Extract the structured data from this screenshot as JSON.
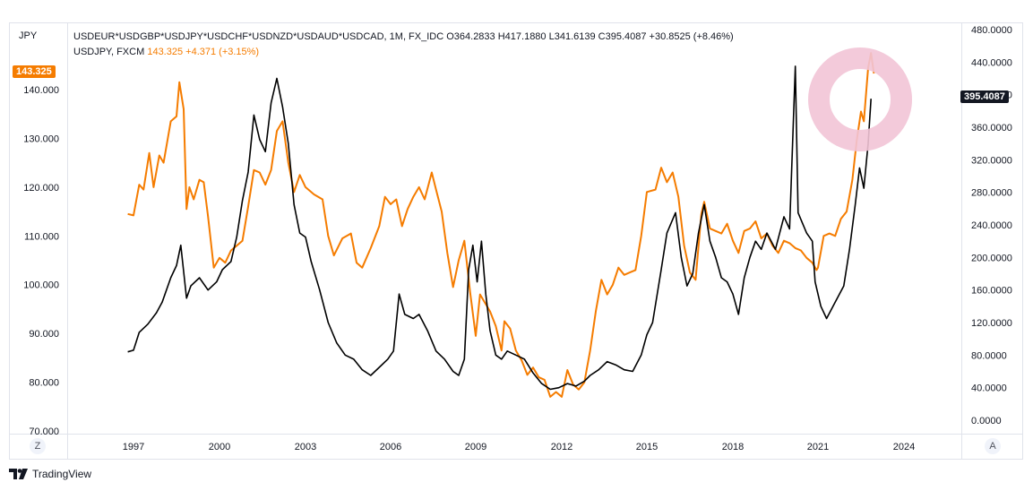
{
  "header": {
    "left_unit": "JPY",
    "legend_main": "USDEUR*USDGBP*USDJPY*USDCHF*USDNZD*USDAUD*USDCAD, 1M, FX_IDC  O364.2833  H417.1880  L341.6139  C395.4087  +30.8525 (+8.46%)",
    "legend_second_name": "USDJPY, FXCM",
    "legend_second_value": "143.325  +4.371 (+3.15%)"
  },
  "tags": {
    "left_price": "143.325",
    "right_price": "395.4087"
  },
  "buttons": {
    "z_label": "Z",
    "a_label": "A"
  },
  "branding": {
    "logo_text": "TradingView"
  },
  "colors": {
    "usdjpy": "#f57c00",
    "basket": "#000000",
    "highlight_ring": "#f2c4d6"
  },
  "chart_data": {
    "type": "line",
    "x_tick_labels": [
      "1997",
      "2000",
      "2003",
      "2006",
      "2009",
      "2012",
      "2015",
      "2018",
      "2021",
      "2024"
    ],
    "left_axis": {
      "label": "JPY",
      "ticks": [
        "140.000",
        "130.000",
        "120.000",
        "110.000",
        "100.000",
        "90.000",
        "80.000",
        "70.000"
      ],
      "ylim": [
        70,
        143.5
      ]
    },
    "right_axis": {
      "ticks": [
        "480.0000",
        "440.0000",
        "400.0000",
        "360.0000",
        "320.0000",
        "280.0000",
        "240.0000",
        "200.0000",
        "160.0000",
        "120.0000",
        "80.0000",
        "40.0000",
        "0.0000"
      ],
      "ylim": [
        0,
        480
      ]
    },
    "series": [
      {
        "name": "USDJPY, FXCM",
        "axis": "left",
        "color": "#f57c00",
        "points": [
          [
            1996.8,
            114.5
          ],
          [
            1997.0,
            114.2
          ],
          [
            1997.2,
            120.5
          ],
          [
            1997.35,
            119.5
          ],
          [
            1997.55,
            127.0
          ],
          [
            1997.7,
            120.0
          ],
          [
            1997.9,
            126.5
          ],
          [
            1998.05,
            125.0
          ],
          [
            1998.3,
            133.5
          ],
          [
            1998.5,
            134.5
          ],
          [
            1998.6,
            141.5
          ],
          [
            1998.75,
            136.0
          ],
          [
            1998.85,
            115.5
          ],
          [
            1998.95,
            120.0
          ],
          [
            1999.1,
            117.5
          ],
          [
            1999.3,
            121.5
          ],
          [
            1999.45,
            121.0
          ],
          [
            1999.6,
            114.0
          ],
          [
            1999.8,
            103.5
          ],
          [
            2000.0,
            105.5
          ],
          [
            2000.2,
            104.5
          ],
          [
            2000.4,
            107.0
          ],
          [
            2000.6,
            108.0
          ],
          [
            2000.8,
            109.0
          ],
          [
            2001.0,
            116.0
          ],
          [
            2001.2,
            123.5
          ],
          [
            2001.4,
            123.0
          ],
          [
            2001.6,
            120.5
          ],
          [
            2001.8,
            123.5
          ],
          [
            2002.0,
            131.5
          ],
          [
            2002.2,
            133.5
          ],
          [
            2002.4,
            125.0
          ],
          [
            2002.6,
            119.0
          ],
          [
            2002.8,
            122.5
          ],
          [
            2003.0,
            120.0
          ],
          [
            2003.3,
            118.5
          ],
          [
            2003.6,
            117.5
          ],
          [
            2003.8,
            110.0
          ],
          [
            2004.0,
            106.0
          ],
          [
            2004.3,
            109.5
          ],
          [
            2004.6,
            110.5
          ],
          [
            2004.8,
            104.5
          ],
          [
            2005.0,
            103.5
          ],
          [
            2005.3,
            107.5
          ],
          [
            2005.6,
            112.0
          ],
          [
            2005.8,
            118.0
          ],
          [
            2006.0,
            116.5
          ],
          [
            2006.2,
            117.5
          ],
          [
            2006.4,
            112.0
          ],
          [
            2006.6,
            115.5
          ],
          [
            2006.8,
            118.0
          ],
          [
            2007.0,
            120.0
          ],
          [
            2007.2,
            117.5
          ],
          [
            2007.45,
            123.0
          ],
          [
            2007.6,
            119.5
          ],
          [
            2007.8,
            115.0
          ],
          [
            2008.0,
            106.5
          ],
          [
            2008.2,
            99.5
          ],
          [
            2008.4,
            105.0
          ],
          [
            2008.6,
            109.0
          ],
          [
            2008.8,
            98.5
          ],
          [
            2009.0,
            89.5
          ],
          [
            2009.15,
            98.0
          ],
          [
            2009.3,
            96.5
          ],
          [
            2009.5,
            94.5
          ],
          [
            2009.7,
            91.5
          ],
          [
            2009.9,
            86.5
          ],
          [
            2010.0,
            92.5
          ],
          [
            2010.2,
            91.0
          ],
          [
            2010.4,
            86.5
          ],
          [
            2010.6,
            84.5
          ],
          [
            2010.8,
            81.5
          ],
          [
            2011.0,
            83.0
          ],
          [
            2011.2,
            81.0
          ],
          [
            2011.4,
            80.5
          ],
          [
            2011.6,
            77.0
          ],
          [
            2011.8,
            78.0
          ],
          [
            2012.0,
            77.0
          ],
          [
            2012.2,
            82.5
          ],
          [
            2012.4,
            79.5
          ],
          [
            2012.6,
            78.5
          ],
          [
            2012.8,
            80.0
          ],
          [
            2013.0,
            86.5
          ],
          [
            2013.2,
            94.5
          ],
          [
            2013.4,
            101.0
          ],
          [
            2013.6,
            98.0
          ],
          [
            2013.8,
            100.0
          ],
          [
            2014.0,
            103.5
          ],
          [
            2014.2,
            102.0
          ],
          [
            2014.4,
            102.5
          ],
          [
            2014.6,
            103.0
          ],
          [
            2014.8,
            110.0
          ],
          [
            2015.0,
            119.0
          ],
          [
            2015.3,
            119.5
          ],
          [
            2015.5,
            124.0
          ],
          [
            2015.7,
            121.0
          ],
          [
            2015.9,
            123.0
          ],
          [
            2016.1,
            118.0
          ],
          [
            2016.3,
            108.0
          ],
          [
            2016.5,
            102.5
          ],
          [
            2016.7,
            101.0
          ],
          [
            2016.9,
            114.5
          ],
          [
            2017.0,
            117.0
          ],
          [
            2017.2,
            111.5
          ],
          [
            2017.4,
            111.0
          ],
          [
            2017.6,
            110.5
          ],
          [
            2017.8,
            112.5
          ],
          [
            2018.0,
            109.0
          ],
          [
            2018.2,
            106.5
          ],
          [
            2018.4,
            111.0
          ],
          [
            2018.6,
            111.5
          ],
          [
            2018.8,
            113.0
          ],
          [
            2019.0,
            109.5
          ],
          [
            2019.2,
            110.5
          ],
          [
            2019.4,
            108.0
          ],
          [
            2019.6,
            106.5
          ],
          [
            2019.8,
            109.0
          ],
          [
            2020.0,
            108.5
          ],
          [
            2020.2,
            107.5
          ],
          [
            2020.4,
            107.0
          ],
          [
            2020.6,
            105.5
          ],
          [
            2020.8,
            104.5
          ],
          [
            2020.95,
            103.0
          ],
          [
            2021.0,
            103.5
          ],
          [
            2021.2,
            110.0
          ],
          [
            2021.4,
            110.5
          ],
          [
            2021.6,
            110.0
          ],
          [
            2021.8,
            113.5
          ],
          [
            2022.0,
            115.0
          ],
          [
            2022.2,
            121.5
          ],
          [
            2022.35,
            129.5
          ],
          [
            2022.5,
            135.5
          ],
          [
            2022.6,
            133.5
          ],
          [
            2022.75,
            144.5
          ],
          [
            2022.85,
            147.5
          ],
          [
            2022.95,
            143.3
          ]
        ]
      },
      {
        "name": "USDEUR*USDGBP*USDJPY*USDCHF*USDNZD*USDAUD*USDCAD, FX_IDC",
        "axis": "right",
        "color": "#000000",
        "points": [
          [
            1996.8,
            84
          ],
          [
            1997.0,
            86
          ],
          [
            1997.2,
            108
          ],
          [
            1997.5,
            118
          ],
          [
            1997.8,
            132
          ],
          [
            1998.0,
            145
          ],
          [
            1998.3,
            175
          ],
          [
            1998.5,
            190
          ],
          [
            1998.65,
            215
          ],
          [
            1998.85,
            150
          ],
          [
            1999.0,
            165
          ],
          [
            1999.3,
            175
          ],
          [
            1999.6,
            160
          ],
          [
            1999.9,
            170
          ],
          [
            2000.1,
            185
          ],
          [
            2000.4,
            195
          ],
          [
            2000.6,
            225
          ],
          [
            2000.8,
            270
          ],
          [
            2001.0,
            305
          ],
          [
            2001.2,
            375
          ],
          [
            2001.4,
            345
          ],
          [
            2001.6,
            330
          ],
          [
            2001.8,
            390
          ],
          [
            2002.0,
            420
          ],
          [
            2002.2,
            385
          ],
          [
            2002.4,
            340
          ],
          [
            2002.6,
            265
          ],
          [
            2002.8,
            230
          ],
          [
            2003.0,
            225
          ],
          [
            2003.2,
            195
          ],
          [
            2003.5,
            160
          ],
          [
            2003.8,
            120
          ],
          [
            2004.1,
            95
          ],
          [
            2004.4,
            80
          ],
          [
            2004.7,
            75
          ],
          [
            2005.0,
            62
          ],
          [
            2005.3,
            55
          ],
          [
            2005.6,
            65
          ],
          [
            2005.9,
            75
          ],
          [
            2006.1,
            85
          ],
          [
            2006.3,
            155
          ],
          [
            2006.5,
            130
          ],
          [
            2006.8,
            125
          ],
          [
            2007.0,
            130
          ],
          [
            2007.3,
            110
          ],
          [
            2007.6,
            85
          ],
          [
            2007.9,
            75
          ],
          [
            2008.2,
            60
          ],
          [
            2008.4,
            55
          ],
          [
            2008.6,
            75
          ],
          [
            2008.75,
            185
          ],
          [
            2008.9,
            215
          ],
          [
            2009.05,
            170
          ],
          [
            2009.2,
            220
          ],
          [
            2009.35,
            155
          ],
          [
            2009.5,
            110
          ],
          [
            2009.7,
            80
          ],
          [
            2009.9,
            75
          ],
          [
            2010.1,
            85
          ],
          [
            2010.4,
            80
          ],
          [
            2010.7,
            75
          ],
          [
            2011.0,
            58
          ],
          [
            2011.3,
            45
          ],
          [
            2011.6,
            38
          ],
          [
            2011.9,
            40
          ],
          [
            2012.2,
            45
          ],
          [
            2012.5,
            42
          ],
          [
            2012.8,
            48
          ],
          [
            2013.0,
            55
          ],
          [
            2013.3,
            62
          ],
          [
            2013.6,
            72
          ],
          [
            2013.9,
            68
          ],
          [
            2014.2,
            62
          ],
          [
            2014.5,
            60
          ],
          [
            2014.8,
            80
          ],
          [
            2015.0,
            105
          ],
          [
            2015.2,
            120
          ],
          [
            2015.5,
            185
          ],
          [
            2015.7,
            230
          ],
          [
            2016.0,
            255
          ],
          [
            2016.2,
            200
          ],
          [
            2016.4,
            165
          ],
          [
            2016.6,
            180
          ],
          [
            2016.8,
            230
          ],
          [
            2017.0,
            265
          ],
          [
            2017.2,
            220
          ],
          [
            2017.4,
            200
          ],
          [
            2017.6,
            175
          ],
          [
            2017.8,
            170
          ],
          [
            2018.0,
            155
          ],
          [
            2018.2,
            130
          ],
          [
            2018.4,
            175
          ],
          [
            2018.6,
            200
          ],
          [
            2018.8,
            220
          ],
          [
            2019.0,
            210
          ],
          [
            2019.2,
            230
          ],
          [
            2019.5,
            210
          ],
          [
            2019.8,
            250
          ],
          [
            2020.0,
            235
          ],
          [
            2020.2,
            435
          ],
          [
            2020.3,
            255
          ],
          [
            2020.6,
            230
          ],
          [
            2020.8,
            220
          ],
          [
            2020.9,
            170
          ],
          [
            2021.1,
            140
          ],
          [
            2021.3,
            125
          ],
          [
            2021.6,
            145
          ],
          [
            2021.9,
            165
          ],
          [
            2022.1,
            210
          ],
          [
            2022.3,
            265
          ],
          [
            2022.45,
            310
          ],
          [
            2022.6,
            285
          ],
          [
            2022.75,
            340
          ],
          [
            2022.85,
            395
          ]
        ]
      }
    ],
    "annotation": "circle highlight around 2022 peak"
  }
}
